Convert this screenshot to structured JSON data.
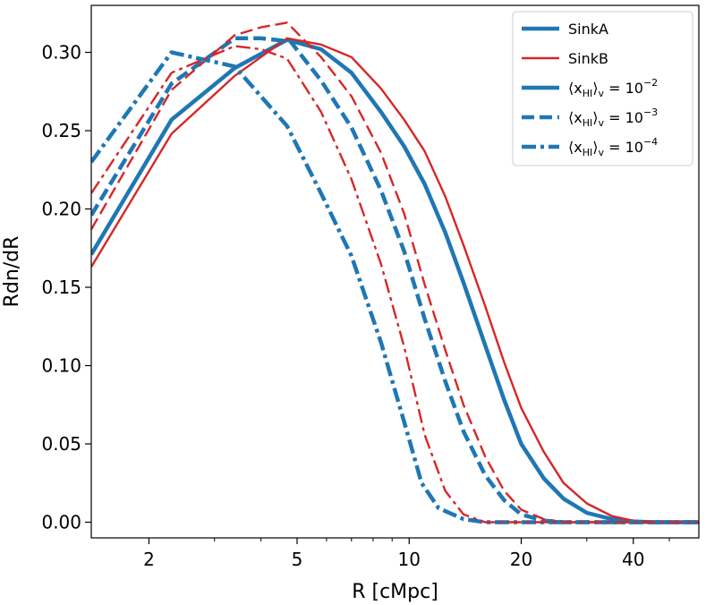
{
  "chart_data": {
    "type": "line",
    "title": "",
    "xlabel": "R [cMpc]",
    "ylabel": "Rdn/dR",
    "xscale": "log",
    "xlim": [
      1.4,
      60
    ],
    "ylim": [
      -0.01,
      0.33
    ],
    "xticks": [
      {
        "value": 2,
        "label": "2"
      },
      {
        "value": 5,
        "label": "5"
      },
      {
        "value": 10,
        "label": "10"
      },
      {
        "value": 20,
        "label": "20"
      },
      {
        "value": 40,
        "label": "40"
      }
    ],
    "yticks": [
      {
        "value": 0.0,
        "label": "0.00"
      },
      {
        "value": 0.05,
        "label": "0.05"
      },
      {
        "value": 0.1,
        "label": "0.10"
      },
      {
        "value": 0.15,
        "label": "0.15"
      },
      {
        "value": 0.2,
        "label": "0.20"
      },
      {
        "value": 0.25,
        "label": "0.25"
      },
      {
        "value": 0.3,
        "label": "0.30"
      }
    ],
    "grid": false,
    "legend_position": "top-right",
    "colors": {
      "sinkA": "#1f77b4",
      "sinkB": "#d62728"
    },
    "legend": [
      {
        "label": "SinkA",
        "color": "#1f77b4",
        "style": "solid",
        "width": "thick"
      },
      {
        "label": "SinkB",
        "color": "#d62728",
        "style": "solid",
        "width": "thin"
      },
      {
        "label": "⟨x",
        "sub": "HI",
        "mid": "⟩",
        "sub2": "v",
        "eq": " = 10",
        "sup": "−2",
        "color": "#1f77b4",
        "style": "solid",
        "width": "thick"
      },
      {
        "label": "⟨x",
        "sub": "HI",
        "mid": "⟩",
        "sub2": "v",
        "eq": " = 10",
        "sup": "−3",
        "color": "#1f77b4",
        "style": "dashed",
        "width": "thick"
      },
      {
        "label": "⟨x",
        "sub": "HI",
        "mid": "⟩",
        "sub2": "v",
        "eq": " = 10",
        "sup": "−4",
        "color": "#1f77b4",
        "style": "dashdot",
        "width": "thick"
      }
    ],
    "series": [
      {
        "name": "SinkA 10^-2",
        "color": "#1f77b4",
        "style": "solid",
        "width": "thick",
        "x": [
          1.4,
          2.3,
          3.4,
          4.7,
          5.8,
          7.0,
          8.4,
          9.7,
          11.0,
          12.5,
          14.0,
          16.0,
          18.0,
          20.0,
          23.0,
          26.0,
          30.0,
          35.0,
          40.0,
          45.0,
          60.0
        ],
        "y": [
          0.171,
          0.257,
          0.29,
          0.308,
          0.302,
          0.287,
          0.262,
          0.24,
          0.216,
          0.185,
          0.153,
          0.113,
          0.078,
          0.05,
          0.028,
          0.015,
          0.006,
          0.002,
          0.0005,
          0.0,
          0.0
        ]
      },
      {
        "name": "SinkB 10^-2",
        "color": "#d62728",
        "style": "solid",
        "width": "thin",
        "x": [
          1.4,
          2.3,
          3.4,
          4.7,
          5.8,
          7.0,
          8.4,
          9.7,
          11.0,
          12.5,
          14.0,
          16.0,
          18.0,
          20.0,
          23.0,
          26.0,
          30.0,
          35.0,
          40.0,
          45.0,
          60.0
        ],
        "y": [
          0.163,
          0.248,
          0.285,
          0.309,
          0.305,
          0.297,
          0.277,
          0.257,
          0.237,
          0.208,
          0.177,
          0.138,
          0.102,
          0.073,
          0.045,
          0.025,
          0.012,
          0.004,
          0.001,
          0.0,
          0.0
        ]
      },
      {
        "name": "SinkA 10^-3",
        "color": "#1f77b4",
        "style": "dashed",
        "width": "thick",
        "x": [
          1.4,
          2.3,
          3.4,
          4.0,
          4.8,
          5.8,
          7.0,
          8.4,
          9.7,
          11.0,
          12.5,
          14.0,
          16.0,
          18.0,
          20.0,
          23.0,
          26.0,
          30.0,
          60.0
        ],
        "y": [
          0.196,
          0.28,
          0.309,
          0.309,
          0.307,
          0.282,
          0.252,
          0.212,
          0.173,
          0.13,
          0.09,
          0.058,
          0.03,
          0.014,
          0.005,
          0.001,
          0.0,
          0.0,
          0.0
        ]
      },
      {
        "name": "SinkB 10^-3",
        "color": "#d62728",
        "style": "dashed",
        "width": "thin",
        "x": [
          1.4,
          2.3,
          3.4,
          4.0,
          4.7,
          5.8,
          7.0,
          8.4,
          9.7,
          11.0,
          12.5,
          14.0,
          16.0,
          18.0,
          20.0,
          23.0,
          26.0,
          30.0,
          60.0
        ],
        "y": [
          0.187,
          0.276,
          0.311,
          0.316,
          0.319,
          0.297,
          0.272,
          0.236,
          0.197,
          0.152,
          0.11,
          0.075,
          0.042,
          0.02,
          0.008,
          0.002,
          0.0,
          0.0,
          0.0
        ]
      },
      {
        "name": "SinkA 10^-4",
        "color": "#1f77b4",
        "style": "dashdot",
        "width": "thick",
        "x": [
          1.4,
          2.3,
          3.4,
          4.7,
          5.8,
          7.0,
          8.4,
          9.7,
          10.8,
          12.0,
          14.0,
          16.0,
          18.0,
          20.0,
          60.0
        ],
        "y": [
          0.23,
          0.3,
          0.291,
          0.253,
          0.21,
          0.17,
          0.115,
          0.064,
          0.025,
          0.009,
          0.002,
          0.0,
          0.0,
          0.0,
          0.0
        ]
      },
      {
        "name": "SinkB 10^-4",
        "color": "#d62728",
        "style": "dashdot",
        "width": "thin",
        "x": [
          1.4,
          2.3,
          3.4,
          4.0,
          4.7,
          5.8,
          7.0,
          8.4,
          9.7,
          11.0,
          12.5,
          14.0,
          16.0,
          18.0,
          20.0,
          60.0
        ],
        "y": [
          0.21,
          0.287,
          0.304,
          0.302,
          0.296,
          0.262,
          0.219,
          0.165,
          0.112,
          0.056,
          0.02,
          0.005,
          0.0,
          0.0,
          0.0,
          0.0
        ]
      }
    ]
  }
}
